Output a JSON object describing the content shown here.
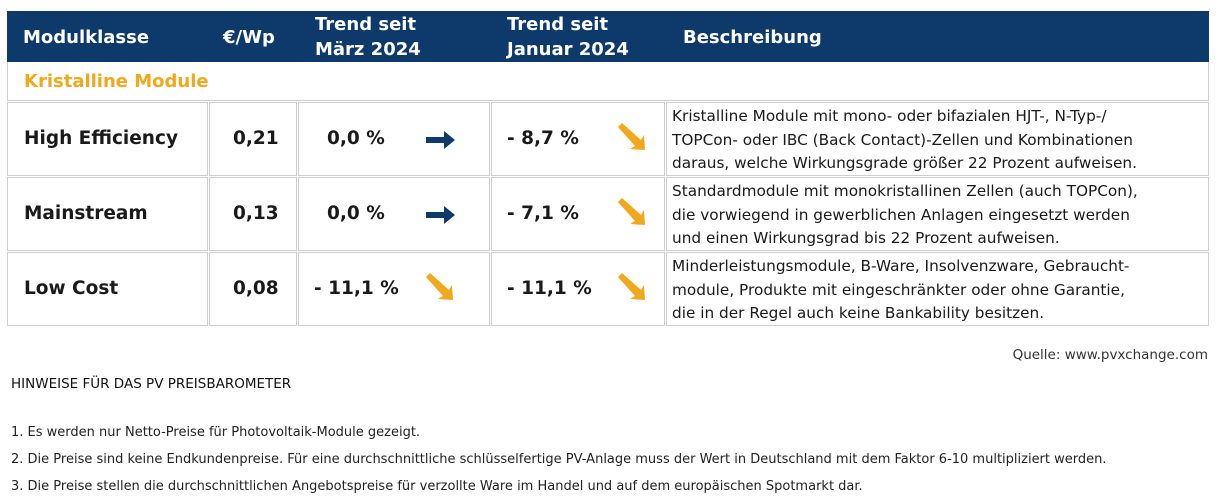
{
  "header": {
    "col1": "Modulklasse",
    "col2": "€/Wp",
    "col3_line1": "Trend seit",
    "col3_line2": "März 2024",
    "col4_line1": "Trend seit",
    "col4_line2": "Januar 2024",
    "col5": "Beschreibung"
  },
  "section_title": "Kristalline Module",
  "rows": [
    {
      "name": "High Efficiency",
      "price": "0,21",
      "trend1": "0,0 %",
      "trend1_icon": "arrow-right-icon",
      "trend2": "- 8,7 %",
      "trend2_icon": "arrow-down-right-icon",
      "desc": [
        "Kristalline Module mit mono- oder bifazialen HJT-, N-Typ-/",
        "TOPCon- oder IBC (Back Contact)-Zellen und Kombinationen",
        "daraus, welche Wirkungsgrade größer 22 Prozent aufweisen."
      ]
    },
    {
      "name": "Mainstream",
      "price": "0,13",
      "trend1": "0,0 %",
      "trend1_icon": "arrow-right-icon",
      "trend2": "- 7,1 %",
      "trend2_icon": "arrow-down-right-icon",
      "desc": [
        "Standardmodule mit monokristallinen Zellen (auch TOPCon),",
        "die vorwiegend in gewerblichen Anlagen eingesetzt werden",
        "und einen Wirkungsgrad bis 22 Prozent aufweisen."
      ]
    },
    {
      "name": "Low Cost",
      "price": "0,08",
      "trend1": "- 11,1 %",
      "trend1_icon": "arrow-down-right-icon",
      "trend2": "- 11,1 %",
      "trend2_icon": "arrow-down-right-icon",
      "desc": [
        "Minderleistungsmodule, B-Ware, Insolvenzware, Gebraucht-",
        "module, Produkte mit eingeschränkter oder ohne Garantie,",
        "die in der Regel auch keine Bankability besitzen."
      ]
    }
  ],
  "colors": {
    "header_bg": "#0e3a6b",
    "accent": "#f0a81c",
    "arrow_blue": "#0e3a6b"
  },
  "source": "Quelle: www.pvxchange.com",
  "notes_title": "HINWEISE FÜR DAS PV PREISBAROMETER",
  "notes": [
    "1.  Es werden nur Netto-Preise für Photovoltaik-Module gezeigt.",
    "2. Die Preise sind keine Endkundenpreise. Für eine durchschnittliche schlüsselfertige PV-Anlage muss der Wert in Deutschland mit dem Faktor 6-10 multipliziert werden.",
    "3. Die Preise stellen die durchschnittlichen Angebotspreise für verzollte Ware im Handel und auf dem europäischen Spotmarkt dar."
  ]
}
